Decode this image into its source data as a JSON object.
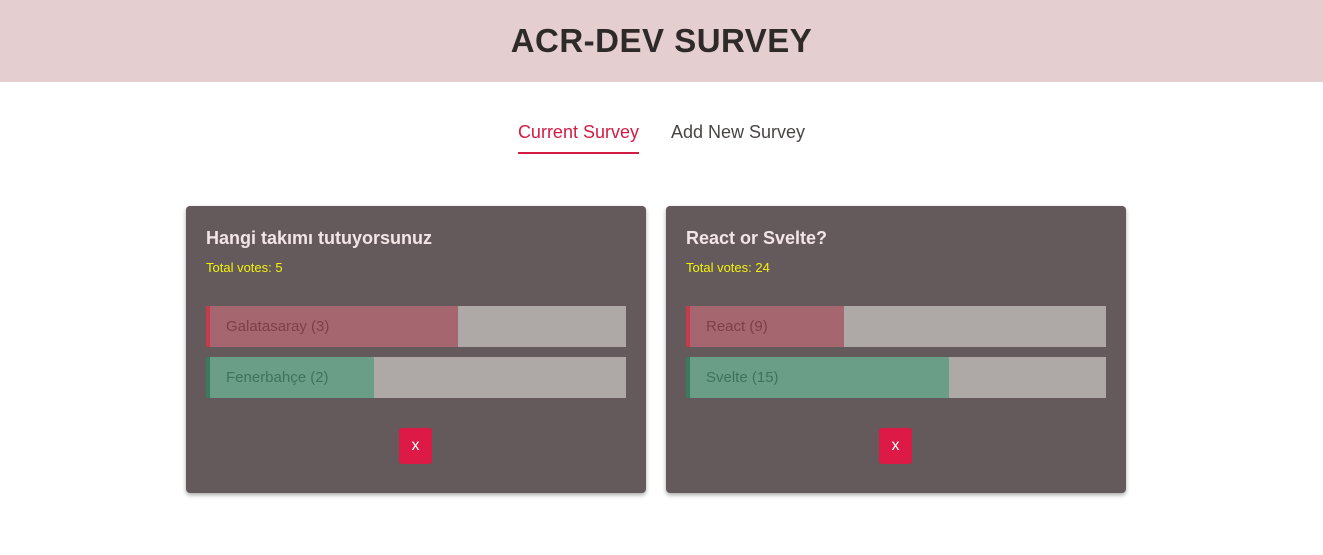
{
  "header": {
    "title": "ACR-DEV SURVEY"
  },
  "tabs": [
    {
      "label": "Current Survey",
      "active": true
    },
    {
      "label": "Add New Survey",
      "active": false
    }
  ],
  "surveys": [
    {
      "question": "Hangi takımı tutuyorsunuz",
      "total_votes_text": "Total votes: 5",
      "total_votes": 5,
      "options": [
        {
          "label": "Galatasaray (3)",
          "votes": 3,
          "color": "red"
        },
        {
          "label": "Fenerbahçe (2)",
          "votes": 2,
          "color": "green"
        }
      ],
      "delete_label": "x"
    },
    {
      "question": "React or Svelte?",
      "total_votes_text": "Total votes: 24",
      "total_votes": 24,
      "options": [
        {
          "label": "React (9)",
          "votes": 9,
          "color": "red"
        },
        {
          "label": "Svelte (15)",
          "votes": 15,
          "color": "green"
        }
      ],
      "delete_label": "x"
    }
  ],
  "colors": {
    "header_bg": "#e5cecf",
    "accent": "#d21c44",
    "card_bg": "#645a5b",
    "votes_text": "#f2f20c",
    "option_red": "#a66670",
    "option_green": "#6b9e86"
  }
}
